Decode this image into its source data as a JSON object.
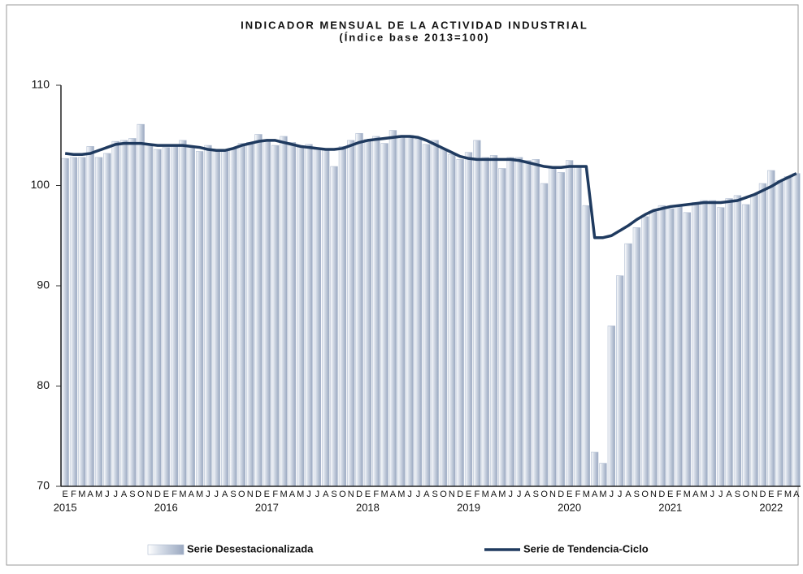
{
  "chart_data": {
    "type": "bar",
    "title": "INDICADOR MENSUAL DE LA ACTIVIDAD INDUSTRIAL",
    "subtitle": "(Índice base 2013=100)",
    "categories": [
      "E",
      "F",
      "M",
      "A",
      "M",
      "J",
      "J",
      "A",
      "S",
      "O",
      "N",
      "D",
      "E",
      "F",
      "M",
      "A",
      "M",
      "J",
      "J",
      "A",
      "S",
      "O",
      "N",
      "D",
      "E",
      "F",
      "M",
      "A",
      "M",
      "J",
      "J",
      "A",
      "S",
      "O",
      "N",
      "D",
      "E",
      "F",
      "M",
      "A",
      "M",
      "J",
      "J",
      "A",
      "S",
      "O",
      "N",
      "D",
      "E",
      "F",
      "M",
      "A",
      "M",
      "J",
      "J",
      "A",
      "S",
      "O",
      "N",
      "D",
      "E",
      "F",
      "M",
      "A",
      "M",
      "J",
      "J",
      "A",
      "S",
      "O",
      "N",
      "D",
      "E",
      "F",
      "M",
      "A",
      "M",
      "J",
      "J",
      "A",
      "S",
      "O",
      "N",
      "D",
      "E",
      "F",
      "M",
      "A"
    ],
    "year_labels": [
      "2015",
      "2016",
      "2017",
      "2018",
      "2019",
      "2020",
      "2021",
      "2022"
    ],
    "ylim": [
      70,
      110
    ],
    "yticks": [
      70,
      80,
      90,
      100,
      110
    ],
    "grid": false,
    "legend": "bottom",
    "series": [
      {
        "name": "Serie Desestacionalizada",
        "type": "bar",
        "color": "#aebbd0",
        "values": [
          102.7,
          102.8,
          102.8,
          103.9,
          102.8,
          103.2,
          104.4,
          104.5,
          104.7,
          106.1,
          104.1,
          103.6,
          103.8,
          104.0,
          104.5,
          103.9,
          103.4,
          104.0,
          103.5,
          103.5,
          103.7,
          104.2,
          104.3,
          105.1,
          104.4,
          104.0,
          104.9,
          104.3,
          103.8,
          104.1,
          103.6,
          103.7,
          101.9,
          103.9,
          104.5,
          105.2,
          104.6,
          104.9,
          104.2,
          105.5,
          105.0,
          105.0,
          104.6,
          104.1,
          104.5,
          103.6,
          103.1,
          102.6,
          103.3,
          104.5,
          102.8,
          103.0,
          101.7,
          102.8,
          102.8,
          102.5,
          102.6,
          100.2,
          101.9,
          101.3,
          102.5,
          101.9,
          98.0,
          73.4,
          72.3,
          86.0,
          91.0,
          94.2,
          95.8,
          96.9,
          97.4,
          98.0,
          97.7,
          98.0,
          97.3,
          98.3,
          98.5,
          98.5,
          97.8,
          98.7,
          99.0,
          98.1,
          99.1,
          100.2,
          101.5,
          100.5,
          100.9,
          101.2
        ]
      },
      {
        "name": "Serie de Tendencia-Ciclo",
        "type": "line",
        "color": "#1f3a5f",
        "values": [
          103.2,
          103.1,
          103.1,
          103.2,
          103.5,
          103.8,
          104.1,
          104.2,
          104.2,
          104.2,
          104.1,
          104.0,
          104.0,
          104.0,
          104.0,
          103.9,
          103.8,
          103.6,
          103.5,
          103.5,
          103.7,
          104.0,
          104.2,
          104.4,
          104.5,
          104.5,
          104.3,
          104.1,
          103.9,
          103.8,
          103.7,
          103.6,
          103.6,
          103.7,
          104.0,
          104.3,
          104.5,
          104.6,
          104.7,
          104.8,
          104.9,
          104.9,
          104.8,
          104.5,
          104.1,
          103.7,
          103.3,
          102.9,
          102.7,
          102.6,
          102.6,
          102.6,
          102.6,
          102.6,
          102.5,
          102.3,
          102.1,
          101.9,
          101.8,
          101.8,
          101.9,
          101.9,
          101.9,
          94.8,
          94.8,
          95.0,
          95.5,
          96.0,
          96.6,
          97.1,
          97.5,
          97.7,
          97.9,
          98.0,
          98.1,
          98.2,
          98.3,
          98.3,
          98.3,
          98.4,
          98.5,
          98.8,
          99.1,
          99.5,
          99.9,
          100.4,
          100.8,
          101.2
        ]
      }
    ]
  }
}
